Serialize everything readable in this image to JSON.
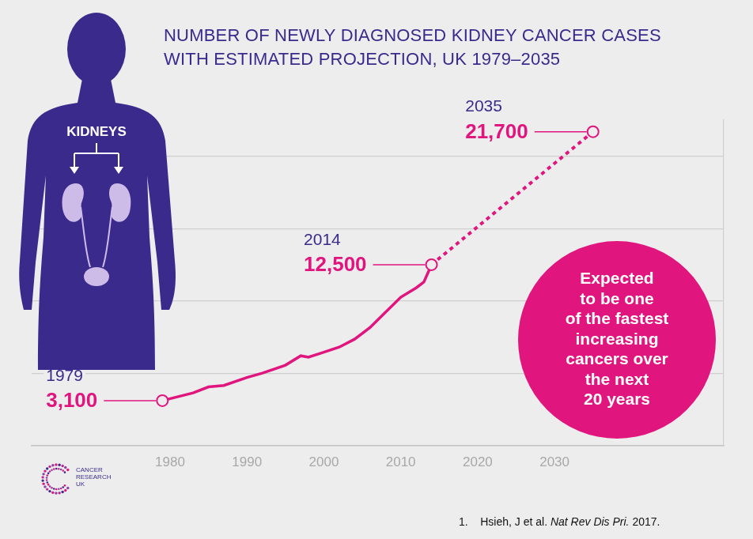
{
  "chart_data": {
    "type": "line",
    "title": [
      "NUMBER OF NEWLY DIAGNOSED KIDNEY CANCER CASES",
      "WITH ESTIMATED PROJECTION, UK 1979–2035"
    ],
    "series": [
      {
        "color": "#e0157e",
        "line_style": "solid",
        "marker": "none",
        "x": [
          1979,
          1983,
          1985,
          1987,
          1990,
          1992,
          1995,
          1997,
          1998,
          2000,
          2002,
          2004,
          2006,
          2008,
          2010,
          2012,
          2013,
          2014
        ],
        "values": [
          3100,
          3630,
          4050,
          4150,
          4700,
          5000,
          5550,
          6200,
          6100,
          6450,
          6800,
          7350,
          8150,
          9200,
          10250,
          10900,
          11300,
          12500
        ]
      },
      {
        "color": "#e0157e",
        "line_style": "dashed",
        "marker": "none",
        "x": [
          2014,
          2035
        ],
        "values": [
          12500,
          21700
        ]
      }
    ],
    "xlim": [
      1962,
      2052
    ],
    "xticks": [
      1980,
      1990,
      2000,
      2010,
      2020,
      2030
    ],
    "ylim": [
      0,
      22500
    ],
    "yticks": [
      0,
      5000,
      10000,
      15000,
      20000
    ],
    "grid": true,
    "tick_labels": "x",
    "annotations": [
      {
        "x": 1979,
        "y": 3100,
        "label": "1979",
        "value_label": "3,100"
      },
      {
        "x": 2014,
        "y": 12500,
        "label": "2014",
        "value_label": "12,500"
      },
      {
        "x": 2035,
        "y": 21700,
        "label": "2035",
        "value_label": "21,700"
      }
    ],
    "callout": [
      "Expected",
      "to be one",
      "of the fastest",
      "increasing",
      "cancers over",
      "the next",
      "20 years"
    ],
    "figure_label": "KIDNEYS",
    "logo": [
      "CANCER",
      "RESEARCH",
      "UK"
    ],
    "citation": {
      "number": "1.",
      "authors": "Hsieh, J et al.",
      "journal": "Nat Rev Dis Pri.",
      "year": "2017."
    }
  }
}
